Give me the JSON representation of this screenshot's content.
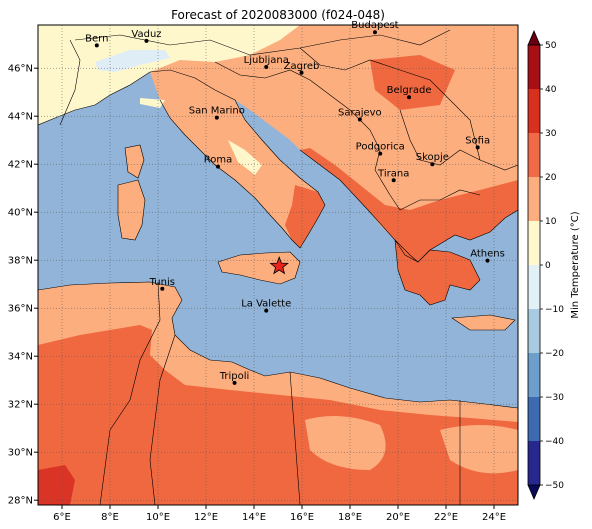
{
  "title": "Forecast of 2020083000 (f024-048)",
  "map": {
    "lon_ticks": [
      "6°E",
      "8°E",
      "10°E",
      "12°E",
      "14°E",
      "16°E",
      "18°E",
      "20°E",
      "22°E",
      "24°E"
    ],
    "lat_ticks": [
      "46°N",
      "44°N",
      "42°N",
      "40°N",
      "38°N",
      "36°N",
      "34°N",
      "32°N",
      "30°N",
      "28°N"
    ],
    "lon_range": [
      5,
      25
    ],
    "lat_range": [
      27.8,
      47.8
    ],
    "colors": {
      "sea": "#92b4d8",
      "land_10_20": "#fcae7f",
      "land_20_30": "#f0683f",
      "land_30_40": "#d93426",
      "land_0_10": "#fff7cc",
      "land_neg": "#dfeef6"
    }
  },
  "cities": [
    {
      "name": "Bern",
      "lon": 7.45,
      "lat": 46.95
    },
    {
      "name": "Vaduz",
      "lon": 9.52,
      "lat": 47.14
    },
    {
      "name": "Budapest",
      "lon": 19.04,
      "lat": 47.5
    },
    {
      "name": "Ljubljana",
      "lon": 14.51,
      "lat": 46.05
    },
    {
      "name": "Zagreb",
      "lon": 15.98,
      "lat": 45.81
    },
    {
      "name": "San Marino",
      "lon": 12.45,
      "lat": 43.94
    },
    {
      "name": "Belgrade",
      "lon": 20.46,
      "lat": 44.79
    },
    {
      "name": "Sarajevo",
      "lon": 18.41,
      "lat": 43.86
    },
    {
      "name": "Sofia",
      "lon": 23.32,
      "lat": 42.7
    },
    {
      "name": "Roma",
      "lon": 12.5,
      "lat": 41.9
    },
    {
      "name": "Podgorica",
      "lon": 19.26,
      "lat": 42.44
    },
    {
      "name": "Skopje",
      "lon": 21.43,
      "lat": 42.0
    },
    {
      "name": "Tirana",
      "lon": 19.82,
      "lat": 41.33
    },
    {
      "name": "Athens",
      "lon": 23.73,
      "lat": 37.98
    },
    {
      "name": "Tunis",
      "lon": 10.18,
      "lat": 36.81
    },
    {
      "name": "La Valette",
      "lon": 14.51,
      "lat": 35.9
    },
    {
      "name": "Tripoli",
      "lon": 13.19,
      "lat": 32.89
    }
  ],
  "star": {
    "lon": 15.05,
    "lat": 37.75,
    "color": "#e8241c"
  },
  "colorbar": {
    "label": "Min Temperature (°C)",
    "ticks": [
      "50",
      "40",
      "30",
      "20",
      "10",
      "0",
      "−10",
      "−20",
      "−30",
      "−40",
      "−50"
    ],
    "bands": [
      "#670010",
      "#a50f15",
      "#d7301f",
      "#f06a48",
      "#fcae80",
      "#fff8cc",
      "#e2f1f6",
      "#a8cbe2",
      "#6e9ecb",
      "#3e6ab0",
      "#27288d",
      "#0a0a5a"
    ]
  }
}
